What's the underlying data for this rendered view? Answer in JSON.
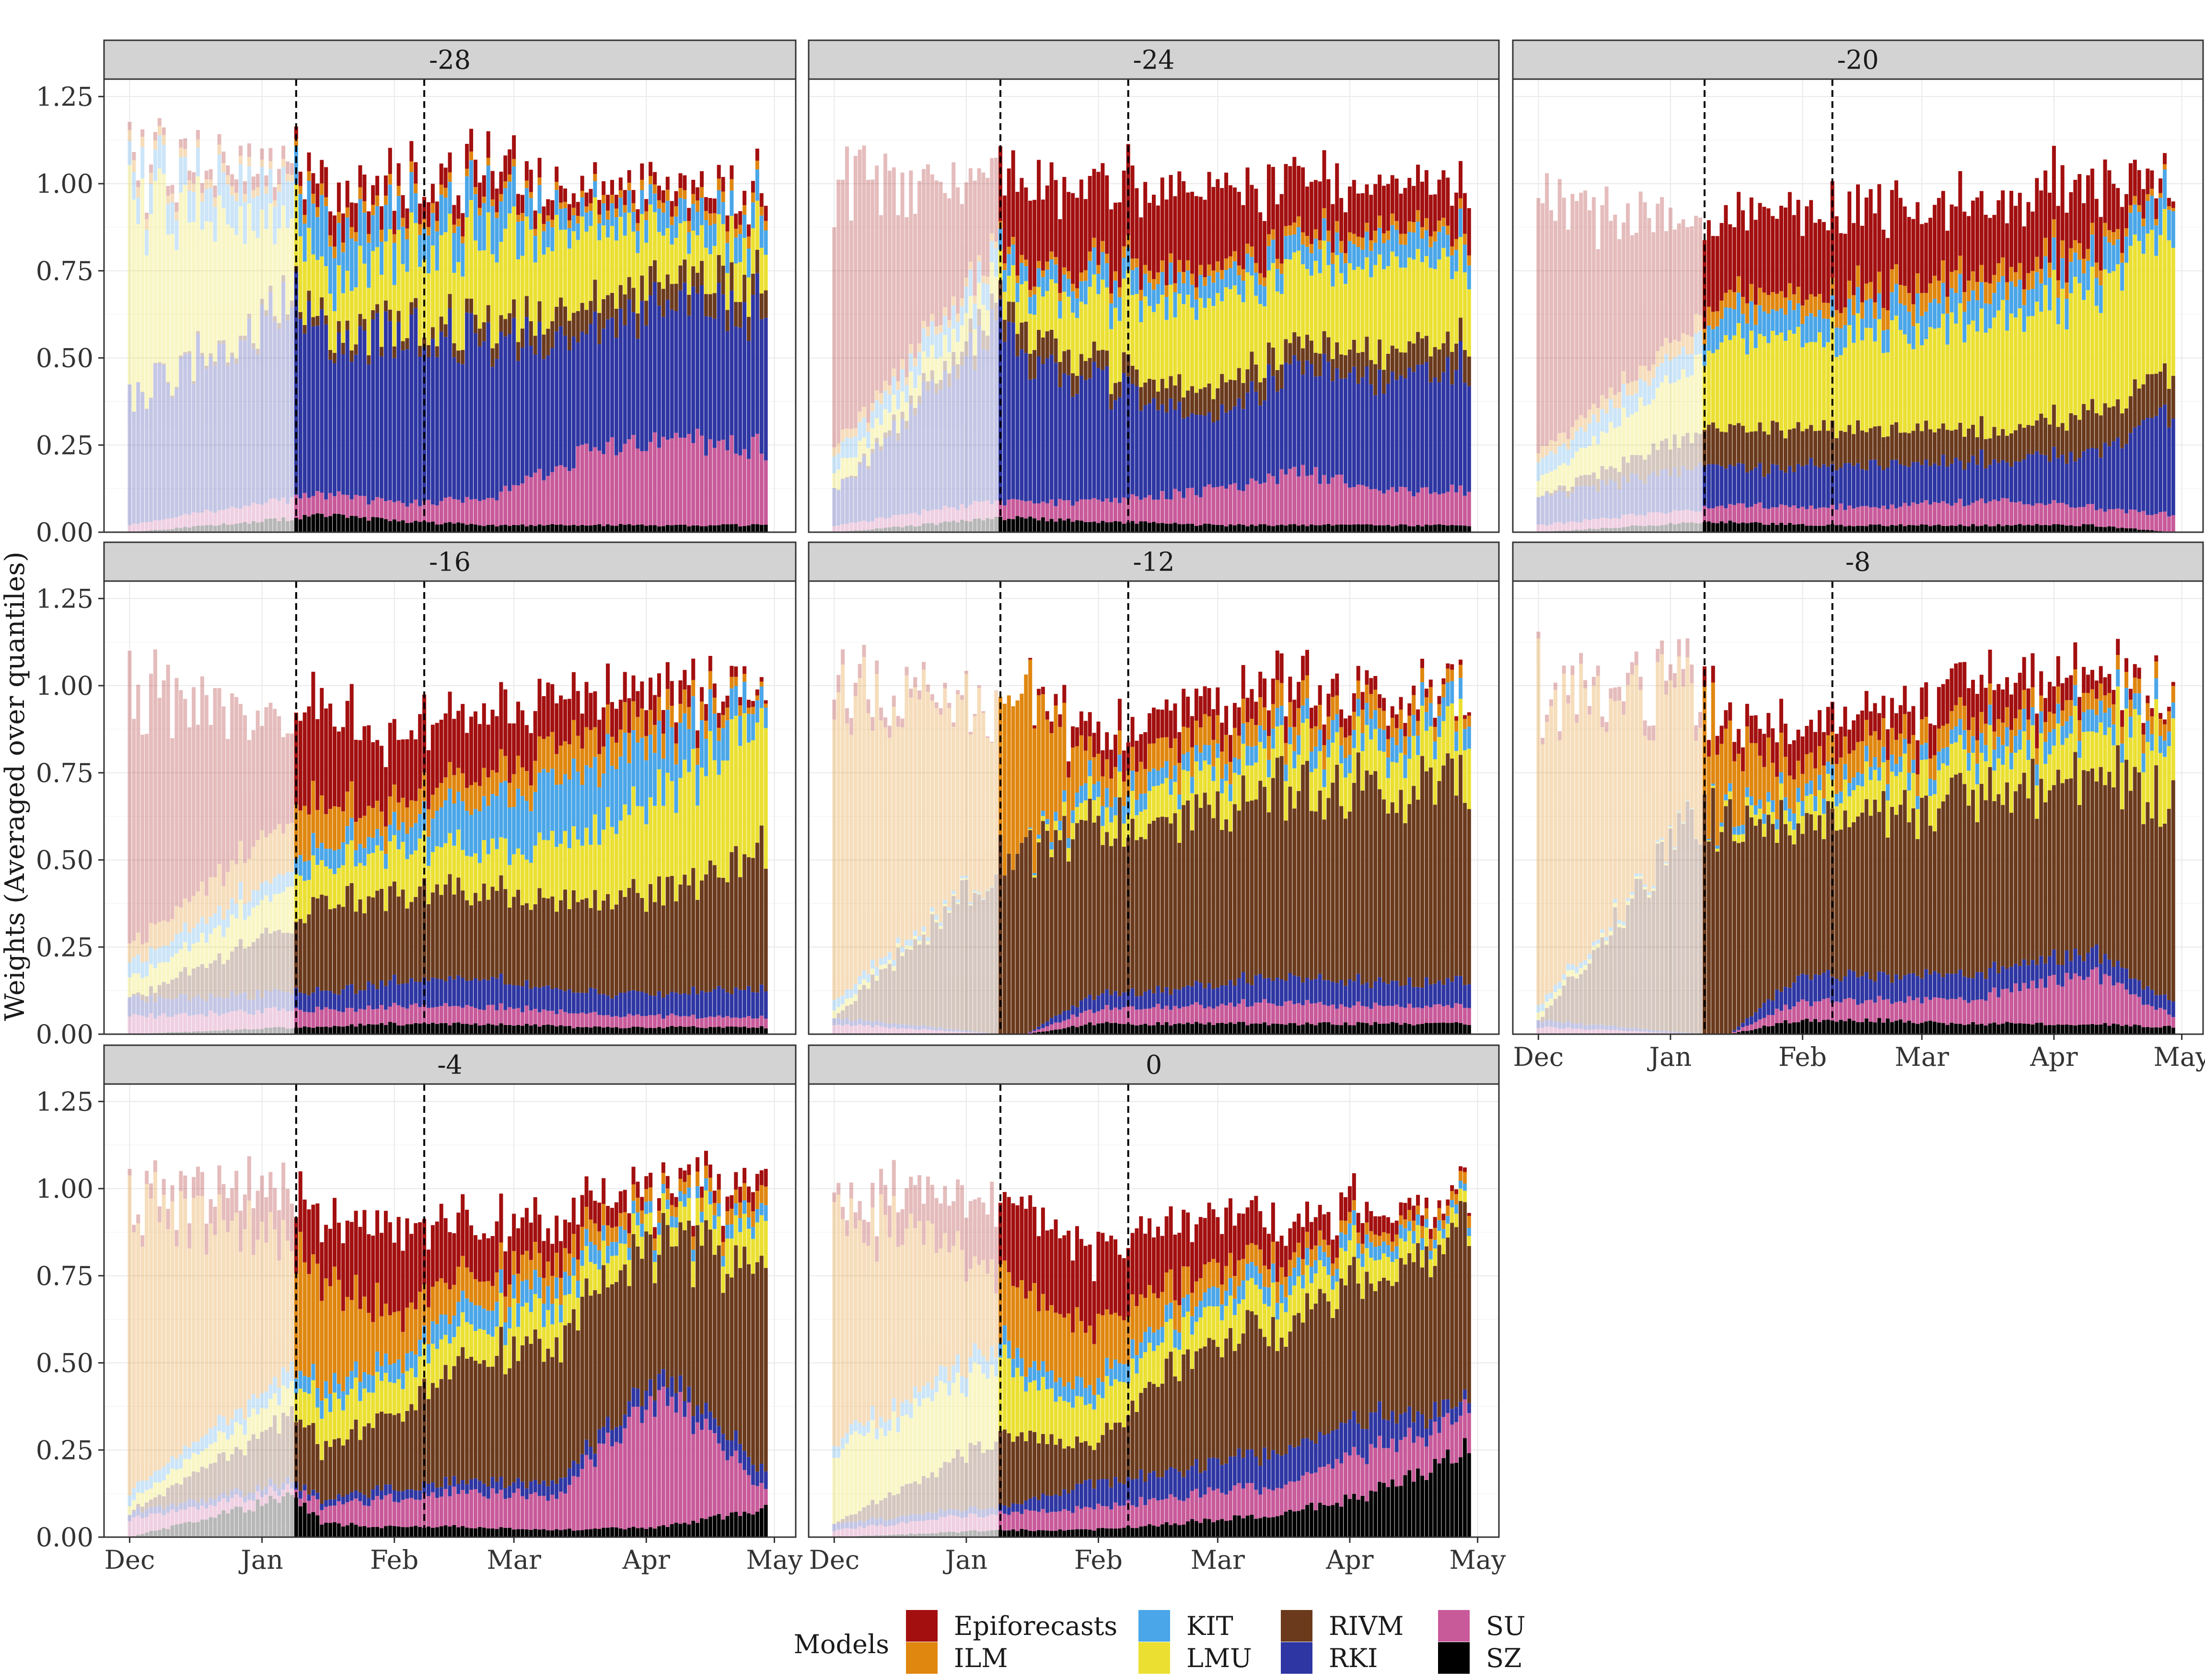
{
  "chart_data": {
    "type": "area",
    "subtype": "stacked-bar-faceted",
    "ylabel": "Weights (Averaged over quantiles)",
    "xlabel": "",
    "ylim": [
      0,
      1.3
    ],
    "yticks": [
      0.0,
      0.25,
      0.5,
      0.75,
      1.0,
      1.25
    ],
    "ytick_labels": [
      "0.00",
      "0.25",
      "0.50",
      "0.75",
      "1.00",
      "1.25"
    ],
    "xticks": [
      {
        "label": "Dec",
        "day": 0
      },
      {
        "label": "Jan",
        "day": 31
      },
      {
        "label": "Feb",
        "day": 62
      },
      {
        "label": "Mar",
        "day": 90
      },
      {
        "label": "Apr",
        "day": 121
      },
      {
        "label": "May",
        "day": 151
      }
    ],
    "x_day_range": [
      -6,
      156
    ],
    "day_range": [
      0,
      149
    ],
    "faded_until_day": 39,
    "vlines_day": [
      39,
      69
    ],
    "grid": true,
    "legend_title": "Models",
    "legend_position": "bottom",
    "models": [
      {
        "name": "SZ",
        "color": "#000000"
      },
      {
        "name": "SU",
        "color": "#C85A9A"
      },
      {
        "name": "RKI",
        "color": "#2E36A3"
      },
      {
        "name": "RIVM",
        "color": "#6B3A1C"
      },
      {
        "name": "LMU",
        "color": "#EBE032"
      },
      {
        "name": "KIT",
        "color": "#4AA6E8"
      },
      {
        "name": "ILM",
        "color": "#E0870F"
      },
      {
        "name": "Epiforecasts",
        "color": "#A30F0F"
      }
    ],
    "legend_order": [
      "Epiforecasts",
      "ILM",
      "KIT",
      "LMU",
      "RIVM",
      "RKI",
      "SU",
      "SZ"
    ],
    "panels": [
      {
        "label": "-28",
        "knots": [
          0,
          39,
          45,
          65,
          85,
          105,
          130,
          149
        ],
        "weights": {
          "SZ": [
            0.0,
            0.04,
            0.05,
            0.03,
            0.02,
            0.02,
            0.02,
            0.02
          ],
          "SU": [
            0.02,
            0.06,
            0.06,
            0.05,
            0.08,
            0.2,
            0.25,
            0.22
          ],
          "RKI": [
            0.36,
            0.55,
            0.45,
            0.5,
            0.45,
            0.35,
            0.38,
            0.4
          ],
          "RIVM": [
            0.0,
            0.02,
            0.03,
            0.03,
            0.05,
            0.08,
            0.07,
            0.07
          ],
          "LMU": [
            0.55,
            0.2,
            0.13,
            0.22,
            0.25,
            0.22,
            0.12,
            0.12
          ],
          "KIT": [
            0.08,
            0.12,
            0.15,
            0.1,
            0.12,
            0.05,
            0.07,
            0.08
          ],
          "ILM": [
            0.03,
            0.02,
            0.03,
            0.03,
            0.02,
            0.02,
            0.03,
            0.03
          ],
          "Epiforecasts": [
            0.02,
            0.04,
            0.08,
            0.06,
            0.07,
            0.04,
            0.04,
            0.04
          ]
        }
      },
      {
        "label": "-24",
        "knots": [
          0,
          39,
          45,
          65,
          90,
          110,
          130,
          149
        ],
        "weights": {
          "SZ": [
            0.0,
            0.04,
            0.04,
            0.03,
            0.02,
            0.02,
            0.02,
            0.02
          ],
          "SU": [
            0.02,
            0.05,
            0.05,
            0.06,
            0.1,
            0.15,
            0.1,
            0.1
          ],
          "RKI": [
            0.1,
            0.5,
            0.42,
            0.32,
            0.22,
            0.3,
            0.3,
            0.36
          ],
          "RIVM": [
            0.0,
            0.05,
            0.08,
            0.05,
            0.08,
            0.07,
            0.08,
            0.08
          ],
          "LMU": [
            0.05,
            0.08,
            0.1,
            0.2,
            0.25,
            0.22,
            0.25,
            0.23
          ],
          "KIT": [
            0.05,
            0.07,
            0.05,
            0.07,
            0.06,
            0.06,
            0.07,
            0.07
          ],
          "ILM": [
            0.03,
            0.02,
            0.02,
            0.03,
            0.03,
            0.03,
            0.03,
            0.03
          ],
          "Epiforecasts": [
            0.75,
            0.2,
            0.25,
            0.23,
            0.23,
            0.16,
            0.12,
            0.12
          ]
        }
      },
      {
        "label": "-20",
        "knots": [
          0,
          39,
          45,
          65,
          90,
          110,
          130,
          149
        ],
        "weights": {
          "SZ": [
            0.0,
            0.03,
            0.03,
            0.02,
            0.02,
            0.02,
            0.02,
            0.0
          ],
          "SU": [
            0.02,
            0.04,
            0.05,
            0.05,
            0.06,
            0.07,
            0.05,
            0.05
          ],
          "RKI": [
            0.08,
            0.12,
            0.1,
            0.12,
            0.12,
            0.12,
            0.15,
            0.3
          ],
          "RIVM": [
            0.0,
            0.1,
            0.12,
            0.11,
            0.1,
            0.09,
            0.12,
            0.12
          ],
          "LMU": [
            0.05,
            0.2,
            0.25,
            0.25,
            0.28,
            0.32,
            0.35,
            0.4
          ],
          "KIT": [
            0.05,
            0.07,
            0.08,
            0.07,
            0.08,
            0.08,
            0.08,
            0.1
          ],
          "ILM": [
            0.03,
            0.05,
            0.05,
            0.05,
            0.06,
            0.05,
            0.04,
            0.01
          ],
          "Epiforecasts": [
            0.72,
            0.25,
            0.22,
            0.24,
            0.22,
            0.2,
            0.18,
            0.02
          ]
        }
      },
      {
        "label": "-16",
        "knots": [
          0,
          39,
          45,
          60,
          85,
          105,
          130,
          149
        ],
        "weights": {
          "SZ": [
            0.0,
            0.02,
            0.02,
            0.03,
            0.03,
            0.02,
            0.02,
            0.02
          ],
          "SU": [
            0.05,
            0.05,
            0.05,
            0.05,
            0.05,
            0.04,
            0.03,
            0.03
          ],
          "RKI": [
            0.05,
            0.05,
            0.05,
            0.07,
            0.08,
            0.06,
            0.07,
            0.09
          ],
          "RIVM": [
            0.0,
            0.2,
            0.25,
            0.25,
            0.25,
            0.25,
            0.3,
            0.4
          ],
          "LMU": [
            0.05,
            0.12,
            0.1,
            0.13,
            0.12,
            0.18,
            0.3,
            0.4
          ],
          "KIT": [
            0.05,
            0.05,
            0.06,
            0.05,
            0.15,
            0.2,
            0.15,
            0.06
          ],
          "ILM": [
            0.05,
            0.15,
            0.12,
            0.07,
            0.08,
            0.1,
            0.06,
            0.01
          ],
          "Epiforecasts": [
            0.75,
            0.25,
            0.28,
            0.2,
            0.18,
            0.12,
            0.06,
            0.01
          ]
        }
      },
      {
        "label": "-12",
        "knots": [
          0,
          39,
          45,
          60,
          80,
          100,
          130,
          149
        ],
        "weights": {
          "SZ": [
            0.0,
            0.0,
            0.0,
            0.03,
            0.03,
            0.03,
            0.03,
            0.03
          ],
          "SU": [
            0.03,
            0.0,
            0.0,
            0.04,
            0.05,
            0.06,
            0.05,
            0.05
          ],
          "RKI": [
            0.02,
            0.0,
            0.0,
            0.04,
            0.05,
            0.07,
            0.07,
            0.07
          ],
          "RIVM": [
            0.0,
            0.5,
            0.5,
            0.52,
            0.45,
            0.55,
            0.55,
            0.6
          ],
          "LMU": [
            0.02,
            0.0,
            0.0,
            0.06,
            0.1,
            0.1,
            0.12,
            0.15
          ],
          "KIT": [
            0.03,
            0.0,
            0.0,
            0.05,
            0.05,
            0.05,
            0.06,
            0.06
          ],
          "ILM": [
            0.85,
            0.45,
            0.45,
            0.08,
            0.08,
            0.07,
            0.06,
            0.03
          ],
          "Epiforecasts": [
            0.05,
            0.0,
            0.0,
            0.08,
            0.1,
            0.08,
            0.04,
            0.01
          ]
        }
      },
      {
        "label": "-8",
        "knots": [
          0,
          39,
          45,
          60,
          80,
          100,
          130,
          149
        ],
        "weights": {
          "SZ": [
            0.0,
            0.0,
            0.0,
            0.04,
            0.04,
            0.03,
            0.03,
            0.02
          ],
          "SU": [
            0.02,
            0.0,
            0.0,
            0.05,
            0.06,
            0.07,
            0.15,
            0.03
          ],
          "RKI": [
            0.02,
            0.0,
            0.0,
            0.07,
            0.07,
            0.07,
            0.06,
            0.04
          ],
          "RIVM": [
            0.0,
            0.65,
            0.6,
            0.44,
            0.45,
            0.5,
            0.5,
            0.6
          ],
          "LMU": [
            0.02,
            0.0,
            0.02,
            0.05,
            0.1,
            0.1,
            0.12,
            0.2
          ],
          "KIT": [
            0.02,
            0.0,
            0.02,
            0.04,
            0.04,
            0.05,
            0.06,
            0.05
          ],
          "ILM": [
            0.9,
            0.3,
            0.2,
            0.09,
            0.08,
            0.06,
            0.05,
            0.05
          ],
          "Epiforecasts": [
            0.02,
            0.05,
            0.06,
            0.1,
            0.07,
            0.12,
            0.06,
            0.01
          ]
        }
      },
      {
        "label": "-4",
        "knots": [
          0,
          39,
          45,
          60,
          80,
          100,
          125,
          149
        ],
        "weights": {
          "SZ": [
            0.0,
            0.12,
            0.04,
            0.03,
            0.03,
            0.02,
            0.03,
            0.08
          ],
          "SU": [
            0.05,
            0.02,
            0.05,
            0.08,
            0.1,
            0.1,
            0.4,
            0.05
          ],
          "RKI": [
            0.02,
            0.02,
            0.02,
            0.03,
            0.03,
            0.04,
            0.05,
            0.05
          ],
          "RIVM": [
            0.0,
            0.2,
            0.15,
            0.2,
            0.35,
            0.4,
            0.4,
            0.55
          ],
          "LMU": [
            0.03,
            0.08,
            0.12,
            0.1,
            0.1,
            0.1,
            0.05,
            0.12
          ],
          "KIT": [
            0.03,
            0.05,
            0.05,
            0.05,
            0.07,
            0.06,
            0.03,
            0.04
          ],
          "ILM": [
            0.85,
            0.35,
            0.3,
            0.15,
            0.08,
            0.07,
            0.03,
            0.05
          ],
          "Epiforecasts": [
            0.02,
            0.15,
            0.18,
            0.25,
            0.15,
            0.1,
            0.03,
            0.05
          ]
        }
      },
      {
        "label": "0",
        "knots": [
          0,
          39,
          45,
          60,
          80,
          100,
          125,
          149
        ],
        "weights": {
          "SZ": [
            0.0,
            0.02,
            0.02,
            0.02,
            0.04,
            0.06,
            0.12,
            0.25
          ],
          "SU": [
            0.02,
            0.05,
            0.05,
            0.06,
            0.08,
            0.08,
            0.12,
            0.1
          ],
          "RKI": [
            0.02,
            0.02,
            0.03,
            0.07,
            0.07,
            0.1,
            0.1,
            0.03
          ],
          "RIVM": [
            0.0,
            0.2,
            0.2,
            0.1,
            0.3,
            0.35,
            0.4,
            0.5
          ],
          "LMU": [
            0.2,
            0.22,
            0.15,
            0.12,
            0.1,
            0.1,
            0.08,
            0.03
          ],
          "KIT": [
            0.03,
            0.05,
            0.05,
            0.05,
            0.05,
            0.05,
            0.04,
            0.02
          ],
          "ILM": [
            0.7,
            0.2,
            0.2,
            0.18,
            0.08,
            0.06,
            0.03,
            0.03
          ],
          "Epiforecasts": [
            0.03,
            0.2,
            0.25,
            0.22,
            0.18,
            0.12,
            0.06,
            0.01
          ]
        }
      }
    ]
  }
}
